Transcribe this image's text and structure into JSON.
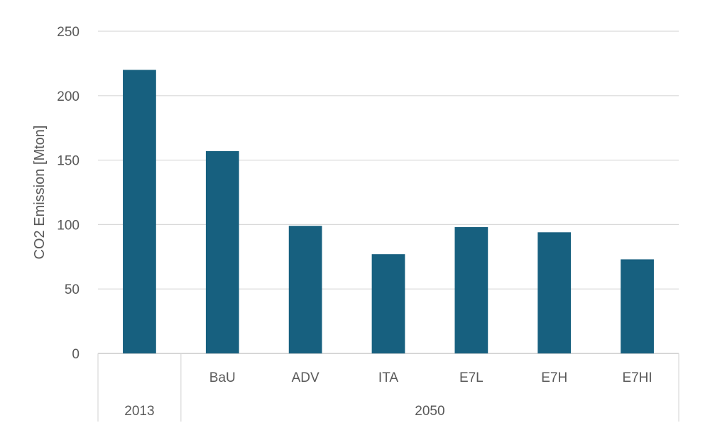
{
  "chart_data": {
    "type": "bar",
    "ylabel": "CO2 Emission [Mton]",
    "ylim": [
      0,
      250
    ],
    "yticks": [
      0,
      50,
      100,
      150,
      200,
      250
    ],
    "grid": true,
    "color": "#17607f",
    "groups": [
      {
        "label": "2013",
        "categories": [
          ""
        ]
      },
      {
        "label": "2050",
        "categories": [
          "BaU",
          "ADV",
          "ITA",
          "E7L",
          "E7H",
          "E7HI"
        ]
      }
    ],
    "categories": [
      "",
      "BaU",
      "ADV",
      "ITA",
      "E7L",
      "E7H",
      "E7HI"
    ],
    "values": [
      220,
      157,
      99,
      77,
      98,
      94,
      73
    ]
  }
}
